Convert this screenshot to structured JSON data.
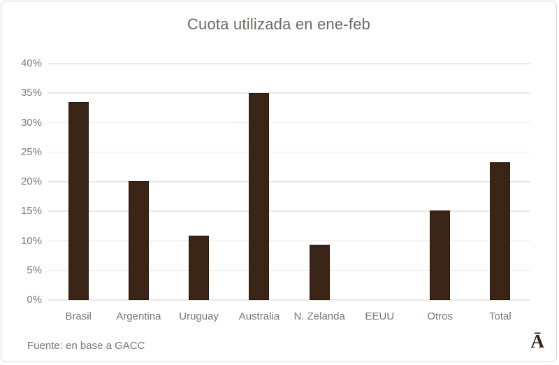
{
  "chart_data": {
    "type": "bar",
    "title": "Cuota utilizada en ene-feb",
    "categories": [
      "Brasil",
      "Argentina",
      "Uruguay",
      "Australia",
      "N. Zelanda",
      "EEUU",
      "Otros",
      "Total"
    ],
    "values": [
      33.5,
      20.1,
      10.9,
      35.0,
      9.3,
      0,
      15.2,
      23.3
    ],
    "unit": "%",
    "ylim": [
      0,
      40
    ],
    "ytick_step": 5,
    "ytick_labels": [
      "0%",
      "5%",
      "10%",
      "15%",
      "20%",
      "25%",
      "30%",
      "35%",
      "40%"
    ],
    "grid": true,
    "legend": "none",
    "xlabel": "",
    "ylabel": ""
  },
  "footer": {
    "source": "Fuente: en base a GACC",
    "logo_glyph": "Ā"
  },
  "colors": {
    "bar_fill": "#3a2416",
    "bar_border": "#2c1a0e",
    "gridline": "#e9e6e6",
    "title_text": "#6f6767",
    "axis_text": "#837a7a",
    "frame_border": "#d8d4d4"
  }
}
